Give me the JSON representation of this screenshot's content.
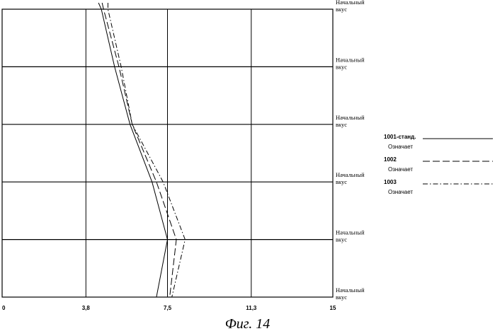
{
  "chart_data": {
    "type": "line",
    "orientation": "vertical-profile",
    "categories": [
      "Начальный вкус",
      "Начальный вкус",
      "Начальный вкус",
      "Начальный вкус",
      "Начальный вкус",
      "Начальный вкус"
    ],
    "category_display": [
      [
        "Начальный",
        "вкус"
      ],
      [
        "Начальный",
        "вкус"
      ],
      [
        "Начальный",
        "вкус"
      ],
      [
        "Начальный",
        "вкус"
      ],
      [
        "Начальный",
        "вкус"
      ],
      [
        "Начальный",
        "вкус"
      ]
    ],
    "xticks": [
      "0",
      "3,8",
      "7,5",
      "11,3",
      "15"
    ],
    "xlim": [
      0,
      15
    ],
    "grid": true,
    "legend_position": "right",
    "series": [
      {
        "name": "1001-станд.",
        "sub": "Означает",
        "style": "solid",
        "values": [
          4.5,
          5.1,
          5.8,
          6.8,
          7.5,
          7.0
        ]
      },
      {
        "name": "1002",
        "sub": "Означает",
        "style": "dashed",
        "values": [
          4.6,
          5.3,
          5.9,
          7.0,
          7.9,
          7.6
        ]
      },
      {
        "name": "1003",
        "sub": "Означает",
        "style": "dashdot",
        "values": [
          4.8,
          5.4,
          5.9,
          7.3,
          8.3,
          7.7
        ]
      }
    ]
  },
  "caption": "Фиг. 14"
}
